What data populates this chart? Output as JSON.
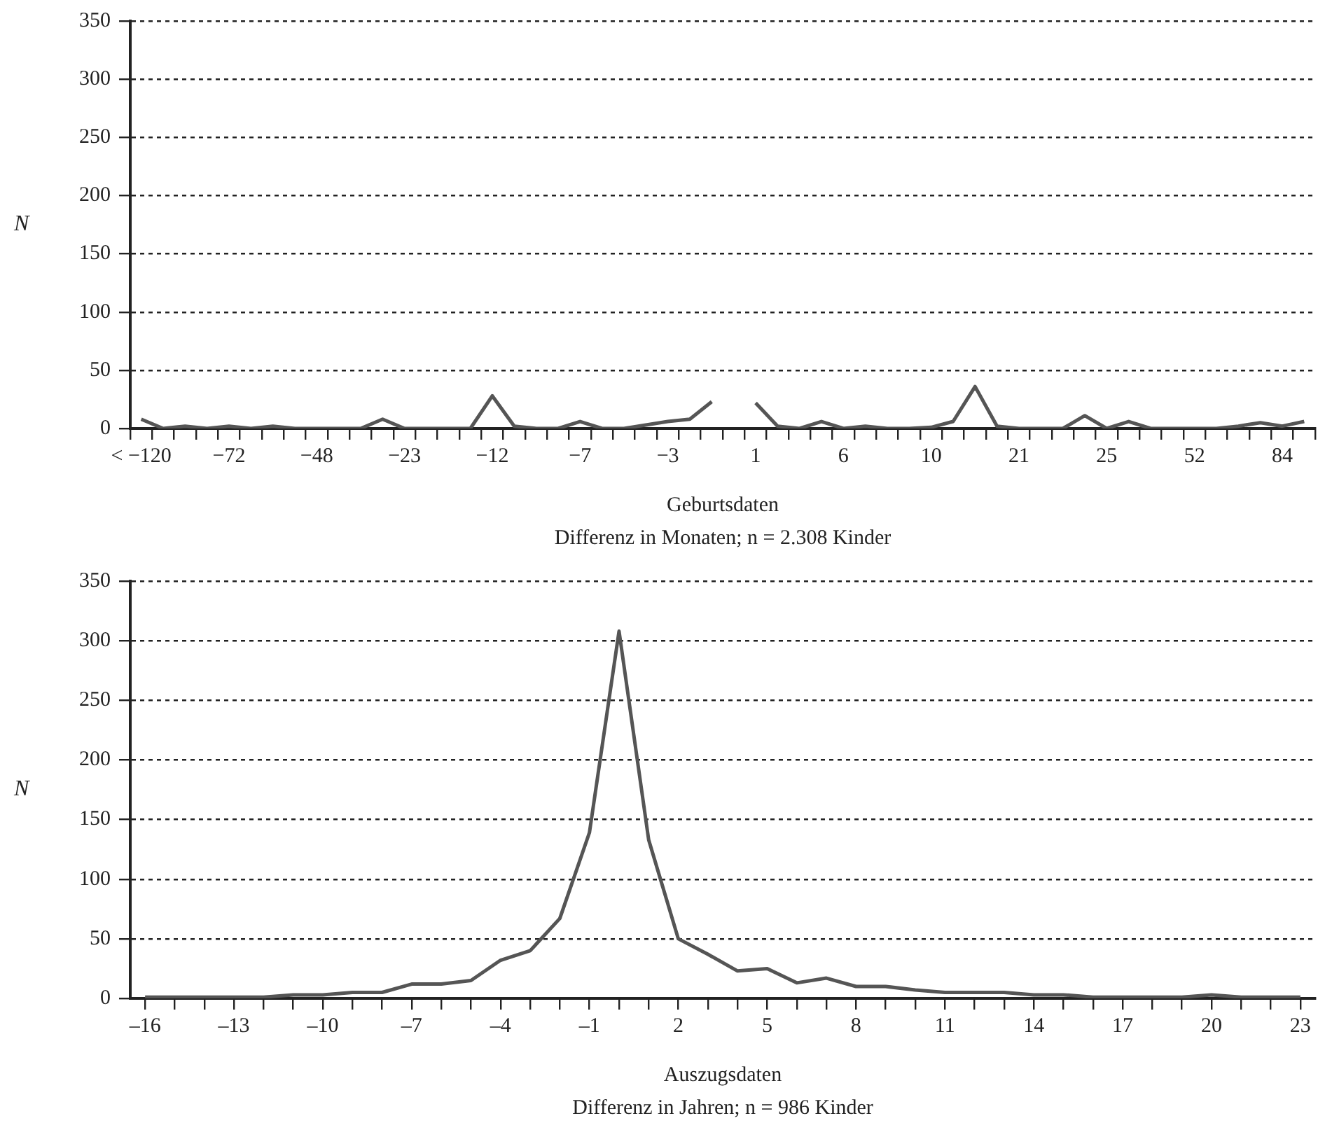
{
  "chart_data": [
    {
      "type": "line",
      "ylabel": "N",
      "xlabel": "Geburtsdaten",
      "annotations": [
        "Differenz in Monaten; n = 2.308 Kinder"
      ],
      "categories": [
        "< −120",
        null,
        null,
        null,
        "−72",
        null,
        null,
        null,
        "−48",
        null,
        null,
        null,
        "−23",
        null,
        null,
        null,
        "−12",
        null,
        null,
        null,
        "−7",
        null,
        null,
        null,
        "−3",
        null,
        null,
        null,
        "1",
        null,
        null,
        null,
        "6",
        null,
        null,
        null,
        "10",
        null,
        null,
        null,
        "21",
        null,
        null,
        null,
        "25",
        null,
        null,
        null,
        "52",
        null,
        null,
        null,
        "84",
        null
      ],
      "series": [
        {
          "color": "#555555",
          "values": [
            8,
            0,
            2,
            0,
            2,
            0,
            2,
            0,
            0,
            0,
            0,
            8,
            0,
            0,
            0,
            0,
            28,
            2,
            0,
            0,
            6,
            0,
            0,
            3,
            6,
            8,
            23,
            null,
            22,
            2,
            0,
            6,
            0,
            2,
            0,
            0,
            1,
            6,
            36,
            2,
            0,
            0,
            0,
            11,
            0,
            6,
            0,
            0,
            0,
            0,
            2,
            5,
            2,
            6
          ]
        }
      ],
      "ylim": [
        0,
        350
      ],
      "yticks": [
        0,
        50,
        100,
        150,
        200,
        250,
        300,
        350
      ],
      "grid": "y",
      "legend": false
    },
    {
      "type": "line",
      "ylabel": "N",
      "xlabel": "Auszugsdaten",
      "annotations": [
        "Differenz in Jahren; n = 986 Kinder"
      ],
      "x": [
        -16,
        -15,
        -14,
        -13,
        -12,
        -11,
        -10,
        -9,
        -8,
        -7,
        -6,
        -5,
        -4,
        -3,
        -2,
        -1,
        0,
        1,
        2,
        3,
        4,
        5,
        6,
        7,
        8,
        9,
        10,
        11,
        12,
        13,
        14,
        15,
        16,
        17,
        18,
        19,
        20,
        21,
        22,
        23
      ],
      "series": [
        {
          "color": "#555555",
          "values": [
            1,
            1,
            1,
            1,
            1,
            3,
            3,
            5,
            5,
            12,
            12,
            15,
            32,
            40,
            67,
            139,
            308,
            133,
            50,
            37,
            23,
            25,
            13,
            17,
            10,
            10,
            7,
            5,
            5,
            5,
            3,
            3,
            1,
            1,
            1,
            1,
            3,
            1,
            1,
            1
          ]
        }
      ],
      "xlim": [
        -16.5,
        23.5
      ],
      "xticks": [
        {
          "value": -16,
          "label": "–16"
        },
        {
          "value": -15,
          "label": null
        },
        {
          "value": -14,
          "label": null
        },
        {
          "value": -13,
          "label": "–13"
        },
        {
          "value": -12,
          "label": null
        },
        {
          "value": -11,
          "label": null
        },
        {
          "value": -10,
          "label": "–10"
        },
        {
          "value": -9,
          "label": null
        },
        {
          "value": -8,
          "label": null
        },
        {
          "value": -7,
          "label": "–7"
        },
        {
          "value": -6,
          "label": null
        },
        {
          "value": -5,
          "label": null
        },
        {
          "value": -4,
          "label": "–4"
        },
        {
          "value": -3,
          "label": null
        },
        {
          "value": -2,
          "label": null
        },
        {
          "value": -1,
          "label": "–1"
        },
        {
          "value": 0,
          "label": null
        },
        {
          "value": 1,
          "label": null
        },
        2,
        {
          "value": 3,
          "label": null
        },
        {
          "value": 4,
          "label": null
        },
        5,
        {
          "value": 6,
          "label": null
        },
        {
          "value": 7,
          "label": null
        },
        8,
        {
          "value": 9,
          "label": null
        },
        {
          "value": 10,
          "label": null
        },
        11,
        {
          "value": 12,
          "label": null
        },
        {
          "value": 13,
          "label": null
        },
        14,
        {
          "value": 15,
          "label": null
        },
        {
          "value": 16,
          "label": null
        },
        17,
        {
          "value": 18,
          "label": null
        },
        {
          "value": 19,
          "label": null
        },
        20,
        {
          "value": 21,
          "label": null
        },
        {
          "value": 22,
          "label": null
        },
        23
      ],
      "ylim": [
        0,
        350
      ],
      "yticks": [
        0,
        50,
        100,
        150,
        200,
        250,
        300,
        350
      ],
      "grid": "y",
      "legend": false
    }
  ]
}
